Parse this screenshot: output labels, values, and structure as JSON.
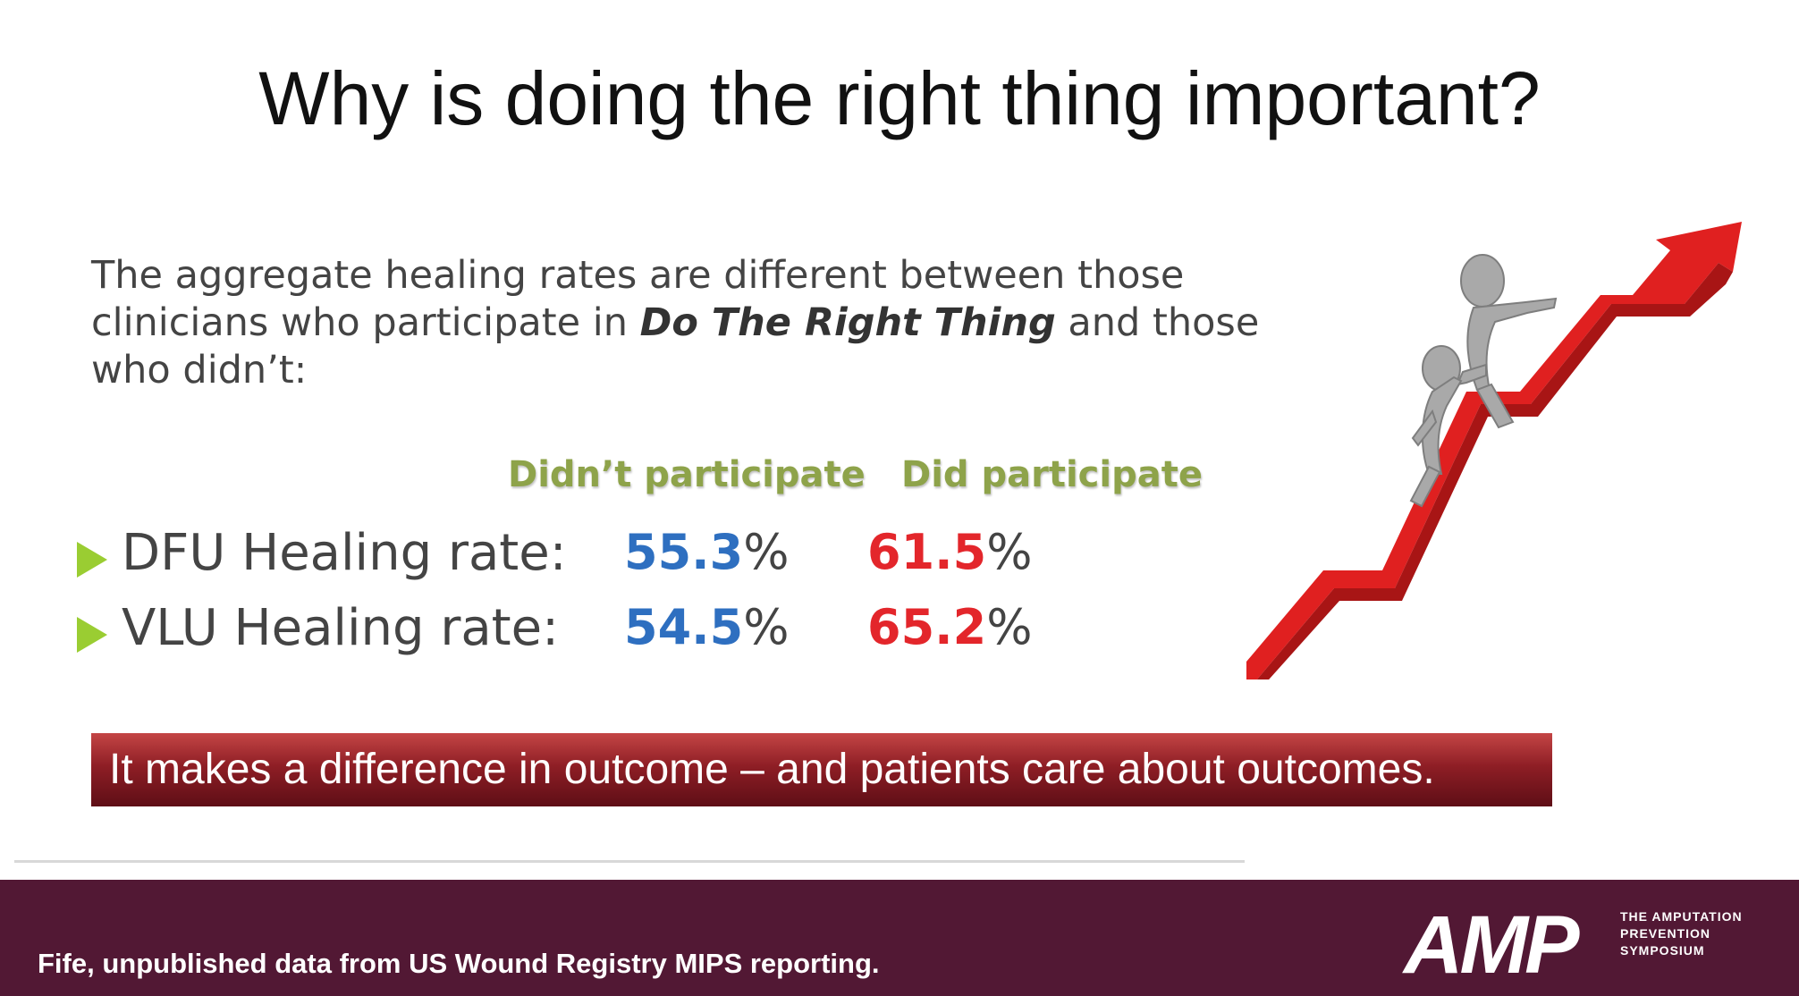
{
  "slide": {
    "title": "Why is doing the right thing important?",
    "intro_part1": "The aggregate healing rates are different between those clinicians who participate in ",
    "intro_emphasis": "Do The Right Thing",
    "intro_part2": " and those who didn’t:"
  },
  "table": {
    "col_headers": [
      "Didn’t participate",
      "Did participate"
    ],
    "rows": [
      {
        "label": "DFU Healing rate:",
        "didnt": "55.3",
        "did": "61.5",
        "unit": "%"
      },
      {
        "label": "VLU Healing rate:",
        "didnt": "54.5",
        "did": "65.2",
        "unit": "%"
      }
    ]
  },
  "banner": {
    "text": "It makes a difference in outcome – and patients care about outcomes."
  },
  "footer": {
    "citation": "Fife, unpublished data from US Wound Registry MIPS reporting.",
    "logo_text": "AMP",
    "logo_sub": [
      "THE AMPUTATION",
      "PREVENTION",
      "SYMPOSIUM"
    ]
  },
  "colors": {
    "didnt": "#2e6fc0",
    "did": "#e3262b",
    "header_green": "#8ea34a",
    "bullet": "#9acd32",
    "footer_bg": "#521834",
    "arrow": "#e02020"
  },
  "icons": {
    "bullet": "triangle-bullet-icon",
    "illustration": "climbing-figures-arrow-icon"
  }
}
